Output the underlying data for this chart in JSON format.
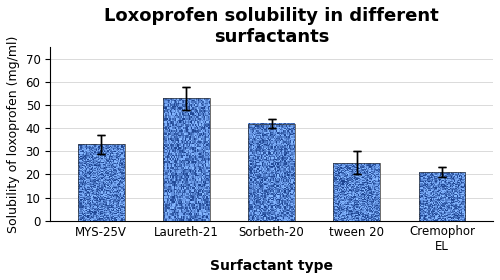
{
  "title": "Loxoprofen solubility in different\nsurfactants",
  "xlabel": "Surfactant type",
  "ylabel": "Solubility of loxoprofen (mg/ml)",
  "categories": [
    "MYS-25V",
    "Laureth-21",
    "Sorbeth-20",
    "tween 20",
    "Cremophor\nEL"
  ],
  "values": [
    33,
    53,
    42,
    25,
    21
  ],
  "errors": [
    4,
    5,
    2,
    5,
    2
  ],
  "ylim": [
    0,
    75
  ],
  "yticks": [
    0,
    10,
    20,
    30,
    40,
    50,
    60,
    70
  ],
  "bar_color_base": [
    0.25,
    0.45,
    0.75
  ],
  "bar_color_dark": [
    0.1,
    0.25,
    0.55
  ],
  "title_fontsize": 13,
  "axis_label_fontsize": 9,
  "tick_fontsize": 8.5,
  "xlabel_fontsize": 10,
  "background_color": "#ffffff"
}
